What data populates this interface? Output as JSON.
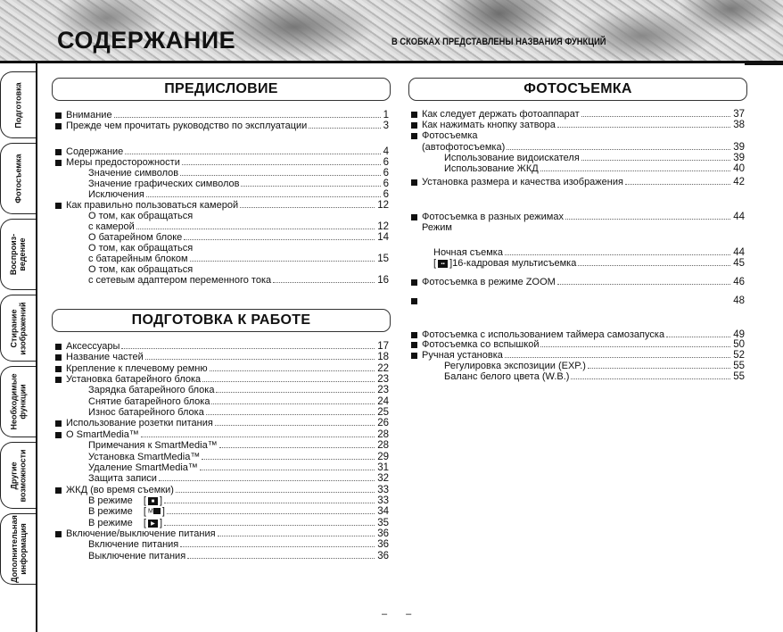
{
  "header": {
    "title": "СОДЕРЖАНИЕ",
    "subtitle": "В СКОБКАХ ПРЕДСТАВЛЕНЫ НАЗВАНИЯ ФУНКЦИЙ"
  },
  "side_tabs": [
    "Подготовка",
    "Фотосъемка",
    "Воспроиз-\nведение",
    "Стирание\nизображений",
    "Необходимые\nфункции",
    "Другие\nвозможности",
    "Дополнительная\nинформация"
  ],
  "sections": {
    "preface": "ПРЕДИСЛОВИЕ",
    "preparation": "ПОДГОТОВКА К РАБОТЕ",
    "shooting": "ФОТОСЪЕМКА"
  },
  "preface_items": [
    {
      "text": "Внимание",
      "page": "1",
      "bullet": true,
      "level": 0
    },
    {
      "text": "Прежде чем прочитать руководство по эксплуатации",
      "page": "3",
      "bullet": true,
      "level": 0
    },
    {
      "text": "Содержание",
      "page": "4",
      "bullet": true,
      "level": 0
    },
    {
      "text": "Меры предосторожности",
      "page": "6",
      "bullet": true,
      "level": 0
    },
    {
      "text": "Значение символов",
      "page": "6",
      "level": 2
    },
    {
      "text": "Значение графических символов",
      "page": "6",
      "level": 2
    },
    {
      "text": "Исключения",
      "page": "6",
      "level": 2
    },
    {
      "text": "Как правильно пользоваться камерой",
      "page": "12",
      "bullet": true,
      "level": 0
    },
    {
      "text": "О том, как обращаться",
      "page": "",
      "level": 2
    },
    {
      "text": "с камерой",
      "page": "12",
      "level": 2
    },
    {
      "text": "О батарейном блоке",
      "page": "14",
      "level": 2
    },
    {
      "text": "О том, как обращаться",
      "page": "",
      "level": 2
    },
    {
      "text": "с батарейным блоком",
      "page": "15",
      "level": 2
    },
    {
      "text": "О том, как обращаться",
      "page": "",
      "level": 2
    },
    {
      "text": "с сетевым адаптером переменного тока",
      "page": "16",
      "level": 2
    }
  ],
  "preparation_items": [
    {
      "text": "Аксессуары",
      "page": "17",
      "bullet": true,
      "level": 0
    },
    {
      "text": "Название частей",
      "page": "18",
      "bullet": true,
      "level": 0
    },
    {
      "text": "Крепление к плечевому ремню",
      "page": "22",
      "bullet": true,
      "level": 0
    },
    {
      "text": "Установка батарейного блока",
      "page": "23",
      "bullet": true,
      "level": 0
    },
    {
      "text": "Зарядка батарейного блока",
      "page": "23",
      "level": 2
    },
    {
      "text": "Снятие батарейного блока",
      "page": "24",
      "level": 2
    },
    {
      "text": "Износ батарейного блока",
      "page": "25",
      "level": 2
    },
    {
      "text": "Использование розетки питания",
      "page": "26",
      "bullet": true,
      "level": 0
    },
    {
      "text": "O SmartMedia™",
      "page": "28",
      "bullet": true,
      "level": 0
    },
    {
      "text": "Примечания к SmartMedia™",
      "page": "28",
      "level": 2
    },
    {
      "text": "Установка SmartMedia™",
      "page": "29",
      "level": 2
    },
    {
      "text": "Удаление SmartMedia™",
      "page": "31",
      "level": 2
    },
    {
      "text": "Защита записи",
      "page": "32",
      "level": 2
    },
    {
      "text": "ЖКД (во время съемки)",
      "page": "33",
      "bullet": true,
      "level": 0
    },
    {
      "text": "В режиме",
      "icon": "camera-icon",
      "page": "33",
      "level": 2
    },
    {
      "text": "В режиме",
      "icon": "manual-camera-icon",
      "page": "34",
      "level": 2
    },
    {
      "text": "В режиме",
      "icon": "playback-icon",
      "page": "35",
      "level": 2
    },
    {
      "text": "Включение/выключение питания",
      "page": "36",
      "bullet": true,
      "level": 0
    },
    {
      "text": "Включение питания",
      "page": "36",
      "level": 2
    },
    {
      "text": "Выключение питания",
      "page": "36",
      "level": 2
    }
  ],
  "shooting_items": [
    {
      "text": "Как следует держать фотоаппарат",
      "page": "37",
      "bullet": true,
      "level": 0
    },
    {
      "text": "Как нажимать кнопку затвора",
      "page": "38",
      "bullet": true,
      "level": 0
    },
    {
      "text": "Фотосъемка",
      "page": "",
      "bullet": true,
      "level": 0
    },
    {
      "text": "(автофотосъемка)",
      "page": "39",
      "level": 0
    },
    {
      "text": "Использование видоискателя",
      "page": "39",
      "level": 2
    },
    {
      "text": "Использование ЖКД",
      "page": "40",
      "level": 2
    },
    {
      "text": "Установка размера и качества изображения",
      "page": "42",
      "bullet": true,
      "level": 0
    },
    {
      "text": "Фотосъемка в разных режимах",
      "page": "44",
      "bullet": true,
      "level": 0
    },
    {
      "text": "Режим",
      "page": "",
      "level": 0
    },
    {
      "text": "Ночная съемка",
      "page": "44",
      "level": 1
    },
    {
      "text": "]16-кадровая мультисъемка",
      "icon": "multi-frame-icon",
      "page": "45",
      "level": 1
    },
    {
      "text": "Фотосъемка в режиме ZOOM",
      "page": "46",
      "bullet": true,
      "level": 0
    },
    {
      "text": "",
      "page": "48",
      "bullet": true,
      "level": 0
    },
    {
      "text": "Фотосъемка с использованием таймера самозапуска",
      "page": "49",
      "bullet": true,
      "level": 0
    },
    {
      "text": "Фотосъемка со вспышкой",
      "page": "50",
      "bullet": true,
      "level": 0
    },
    {
      "text": "Ручная установка",
      "page": "52",
      "bullet": true,
      "level": 0
    },
    {
      "text": "Регулировка экспозиции (EXP.)",
      "page": "55",
      "level": 2
    },
    {
      "text": "Баланс белого цвета (W.B.)",
      "page": "55",
      "level": 2
    }
  ],
  "footer": "– –"
}
